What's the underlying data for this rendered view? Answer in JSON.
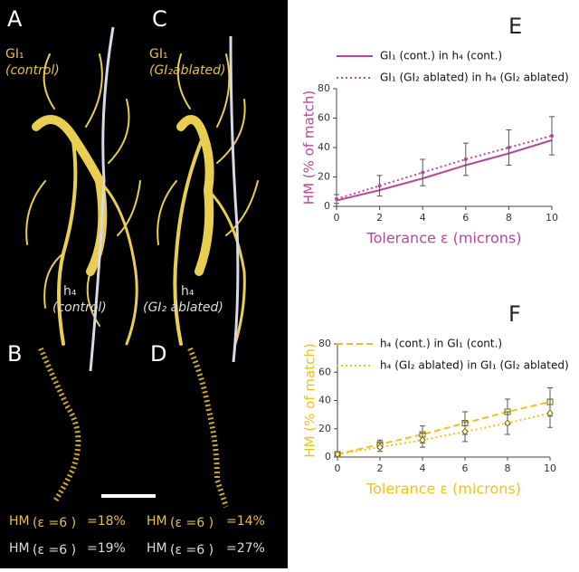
{
  "panels": {
    "A": {
      "label": "A",
      "neuron": "GI₁",
      "condition": "(control)",
      "partner": "h₄",
      "partner_condition": "(control)"
    },
    "C": {
      "label": "C",
      "neuron": "GI₁",
      "condition": "(GI₂ablated)",
      "partner": "h₄",
      "partner_condition": "(GI₂ ablated)"
    },
    "B": {
      "label": "B",
      "hm1": "HM",
      "eps1": "(ε =6 )",
      "val1": "=18%",
      "hm2": "HM",
      "eps2": "(ε =6 )",
      "val2": "=19%"
    },
    "D": {
      "label": "D",
      "hm1": "HM",
      "eps1": "(ε =6 )",
      "val1": "=14%",
      "hm2": "HM",
      "eps2": "(ε =6 )",
      "val2": "=27%"
    }
  },
  "chart_data": [
    {
      "type": "line",
      "title": "E",
      "xlabel": "Tolerance ε  (microns)",
      "ylabel": "HM  (% of match)",
      "label_color": "#b5489a",
      "x": [
        0,
        2,
        4,
        6,
        8,
        10
      ],
      "xlim": [
        0,
        10
      ],
      "ylim": [
        0,
        80
      ],
      "xticks": [
        0,
        2,
        4,
        6,
        8,
        10
      ],
      "yticks": [
        0,
        20,
        40,
        60,
        80
      ],
      "series": [
        {
          "name": "GI₁ (cont.) in h₄ (cont.)",
          "color": "#b5489a",
          "style": "solid",
          "marker": "none",
          "values": [
            4,
            11,
            19,
            28,
            36,
            45
          ]
        },
        {
          "name": "GI₁ (GI₂ ablated) in h₄ (GI₂ ablated)",
          "color": "#b5489a",
          "style": "dotted",
          "marker": "dot",
          "values": [
            5,
            14,
            23,
            32,
            40,
            48
          ],
          "errors": [
            3,
            7,
            9,
            11,
            12,
            13
          ]
        }
      ]
    },
    {
      "type": "line",
      "title": "F",
      "xlabel": "Tolerance ε  (microns)",
      "ylabel": "HM  (% of match)",
      "label_color": "#f0c020",
      "x": [
        0,
        2,
        4,
        6,
        8,
        10
      ],
      "xlim": [
        0,
        10
      ],
      "ylim": [
        0,
        80
      ],
      "xticks": [
        0,
        2,
        4,
        6,
        8,
        10
      ],
      "yticks": [
        0,
        20,
        40,
        60,
        80
      ],
      "series": [
        {
          "name": "h₄ (cont.) in GI₁ (cont.)",
          "color": "#f0c020",
          "style": "dashed",
          "marker": "square",
          "values": [
            2,
            9,
            16,
            24,
            32,
            39
          ],
          "errors": [
            1,
            3,
            6,
            8,
            9,
            10
          ]
        },
        {
          "name": "h₄ (GI₂ ablated) in GI₁ (GI₂ ablated)",
          "color": "#f0c020",
          "style": "dotted",
          "marker": "diamond",
          "values": [
            2,
            7,
            12,
            18,
            24,
            31
          ],
          "errors": [
            1,
            3,
            5,
            7,
            8,
            10
          ]
        }
      ]
    }
  ]
}
